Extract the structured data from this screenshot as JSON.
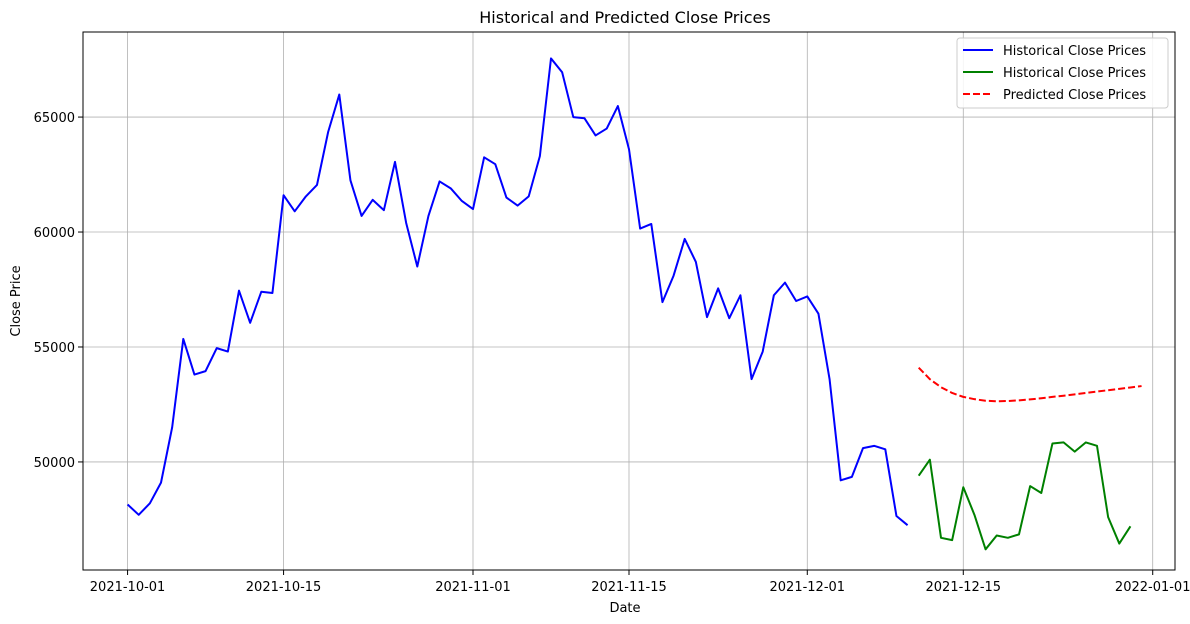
{
  "chart_data": {
    "type": "line",
    "title": "Historical and Predicted Close Prices",
    "xlabel": "Date",
    "ylabel": "Close Price",
    "xlim": [
      "2021-09-27",
      "2022-01-03"
    ],
    "ylim": [
      45300,
      68700
    ],
    "grid": true,
    "legend_position": "top-right",
    "x_ticks": [
      "2021-10-01",
      "2021-10-15",
      "2021-11-01",
      "2021-11-15",
      "2021-12-01",
      "2021-12-15",
      "2022-01-01"
    ],
    "y_ticks": [
      50000,
      55000,
      60000,
      65000
    ],
    "series": [
      {
        "name": "Historical Close Prices",
        "color": "#0000ff",
        "dash": false,
        "start": "2021-10-01",
        "values": [
          48150,
          47700,
          48200,
          49100,
          51500,
          55350,
          53800,
          53950,
          54950,
          54800,
          57450,
          56050,
          57400,
          57350,
          61600,
          60900,
          61550,
          62050,
          64350,
          65980,
          62250,
          60700,
          61400,
          60950,
          63050,
          60400,
          58500,
          60700,
          62200,
          61900,
          61350,
          61000,
          63250,
          62950,
          61500,
          61150,
          61550,
          63300,
          67550,
          66950,
          65000,
          64950,
          64200,
          64500,
          65480,
          63600,
          60150,
          60350,
          56950,
          58100,
          59700,
          58700,
          56300,
          57550,
          56250,
          57250,
          53600,
          54800,
          57250,
          57800,
          57000,
          57200,
          56450,
          53600,
          49200,
          49350,
          50600,
          50700,
          50550,
          47650,
          47250
        ]
      },
      {
        "name": "Historical Close Prices",
        "color": "#008000",
        "dash": false,
        "start": "2021-12-11",
        "values": [
          49400,
          50100,
          46700,
          46600,
          48900,
          47700,
          46200,
          46800,
          46700,
          46850,
          48950,
          48650,
          50800,
          50850,
          50450,
          50850,
          50700,
          47600,
          46450,
          47200
        ]
      },
      {
        "name": "Predicted Close Prices",
        "color": "#ff0000",
        "dash": true,
        "start": "2021-12-11",
        "values": [
          54100,
          53600,
          53250,
          53000,
          52830,
          52730,
          52660,
          52640,
          52650,
          52680,
          52720,
          52770,
          52830,
          52880,
          52940,
          53000,
          53060,
          53120,
          53180,
          53240,
          53300
        ]
      }
    ]
  }
}
